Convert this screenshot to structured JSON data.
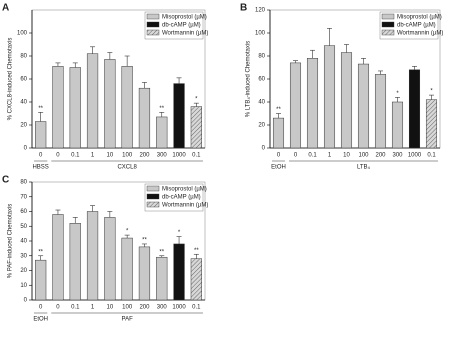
{
  "chart_data": [
    {
      "type": "bar",
      "panel": "A",
      "ylabel": "% CXCL8-induced Chemotaxis",
      "categories": [
        "0",
        "0",
        "0.1",
        "1",
        "10",
        "100",
        "200",
        "300",
        "1000",
        "0.1"
      ],
      "values": [
        23,
        71,
        70,
        82,
        77,
        71,
        52,
        27,
        56,
        36
      ],
      "errors": [
        8,
        3,
        4,
        6,
        6,
        9,
        5,
        4,
        5,
        3
      ],
      "significance": [
        "**",
        null,
        null,
        null,
        null,
        null,
        null,
        "**",
        null,
        "*"
      ],
      "bar_series": [
        0,
        0,
        0,
        0,
        0,
        0,
        0,
        0,
        1,
        2
      ],
      "groups": [
        {
          "label": "HBSS",
          "count": 1
        },
        {
          "label": "CXCL8",
          "count": 9
        }
      ],
      "series": [
        {
          "name": "Misoprostol (µM)",
          "color": "#c8c8c8",
          "hatch": false
        },
        {
          "name": "db-cAMP (µM)",
          "color": "#111111",
          "hatch": false
        },
        {
          "name": "Wortmannin (µM)",
          "color": "#b0b0b0",
          "hatch": true
        }
      ],
      "ylim": [
        0,
        120
      ],
      "yticks": [
        0,
        20,
        40,
        60,
        80,
        100
      ]
    },
    {
      "type": "bar",
      "panel": "B",
      "ylabel": "% LTB₄-induced Chemotaxis",
      "categories": [
        "0",
        "0",
        "0.1",
        "1",
        "10",
        "100",
        "200",
        "300",
        "1000",
        "0.1"
      ],
      "values": [
        26,
        74,
        78,
        89,
        83,
        73,
        64,
        40,
        68,
        42
      ],
      "errors": [
        4,
        2,
        7,
        15,
        7,
        5,
        3,
        4,
        3,
        4
      ],
      "significance": [
        "**",
        null,
        null,
        null,
        null,
        null,
        null,
        "*",
        null,
        "*"
      ],
      "bar_series": [
        0,
        0,
        0,
        0,
        0,
        0,
        0,
        0,
        1,
        2
      ],
      "groups": [
        {
          "label": "EtOH",
          "count": 1
        },
        {
          "label": "LTB₄",
          "count": 9
        }
      ],
      "series": [
        {
          "name": "Misoprostol (µM)",
          "color": "#c8c8c8",
          "hatch": false
        },
        {
          "name": "db-cAMP (µM)",
          "color": "#111111",
          "hatch": false
        },
        {
          "name": "Wortmannin (µM)",
          "color": "#b0b0b0",
          "hatch": true
        }
      ],
      "ylim": [
        0,
        120
      ],
      "yticks": [
        0,
        20,
        40,
        60,
        80,
        100,
        120
      ]
    },
    {
      "type": "bar",
      "panel": "C",
      "ylabel": "% PAF-induced Chemotaxis",
      "categories": [
        "0",
        "0",
        "0.1",
        "1",
        "10",
        "100",
        "200",
        "300",
        "1000",
        "0.1"
      ],
      "values": [
        27,
        58,
        52,
        60,
        56,
        42,
        36,
        29,
        38,
        28
      ],
      "errors": [
        3,
        3,
        4,
        4,
        4,
        2,
        2,
        1,
        5,
        3
      ],
      "significance": [
        "**",
        null,
        null,
        null,
        null,
        "*",
        "**",
        "**",
        "*",
        "**"
      ],
      "bar_series": [
        0,
        0,
        0,
        0,
        0,
        0,
        0,
        0,
        1,
        2
      ],
      "groups": [
        {
          "label": "EtOH",
          "count": 1
        },
        {
          "label": "PAF",
          "count": 9
        }
      ],
      "series": [
        {
          "name": "Misoprostol (µM)",
          "color": "#c8c8c8",
          "hatch": false
        },
        {
          "name": "db-cAMP (µM)",
          "color": "#111111",
          "hatch": false
        },
        {
          "name": "Wortmannin (µM)",
          "color": "#b0b0b0",
          "hatch": true
        }
      ],
      "ylim": [
        0,
        80
      ],
      "yticks": [
        0,
        10,
        20,
        30,
        40,
        50,
        60,
        70,
        80
      ]
    }
  ]
}
